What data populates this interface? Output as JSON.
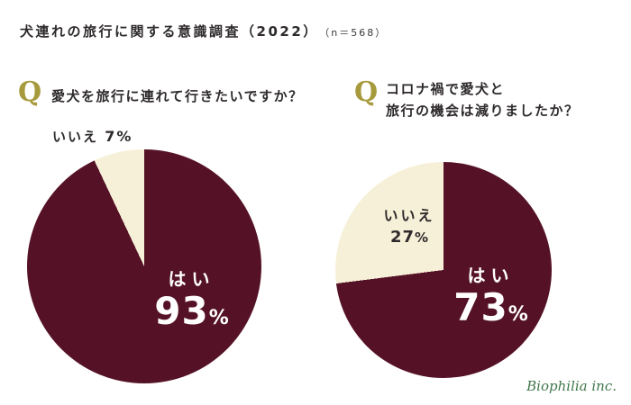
{
  "header": {
    "title": "犬連れの旅行に関する意識調査（2022）",
    "sample": "（n＝568）"
  },
  "footer": {
    "logo": "Biophilia inc."
  },
  "colors": {
    "yes_dark": "#551226",
    "no_cream": "#f7f0d8",
    "q_gold": "#a69a3c",
    "text_dark": "#2e2a2b",
    "logo_green": "#41784b",
    "background": "#ffffff"
  },
  "chart_data": [
    {
      "type": "pie",
      "q_mark": "Q",
      "question_lines": [
        "愛犬を旅行に連れて行きたいですか？"
      ],
      "start_angle_deg": 0,
      "slices": [
        {
          "label": "はい",
          "value": 93,
          "unit": "%",
          "color_key": "yes_dark",
          "label_position": "inside"
        },
        {
          "label": "いいえ",
          "value": 7,
          "unit": "%",
          "color_key": "no_cream",
          "label_position": "outside-top-left"
        }
      ]
    },
    {
      "type": "pie",
      "q_mark": "Q",
      "question_lines": [
        "コロナ禍で愛犬と",
        "旅行の機会は減りましたか？"
      ],
      "start_angle_deg": 0,
      "slices": [
        {
          "label": "はい",
          "value": 73,
          "unit": "%",
          "color_key": "yes_dark",
          "label_position": "inside"
        },
        {
          "label": "いいえ",
          "value": 27,
          "unit": "%",
          "color_key": "no_cream",
          "label_position": "inside"
        }
      ]
    }
  ]
}
